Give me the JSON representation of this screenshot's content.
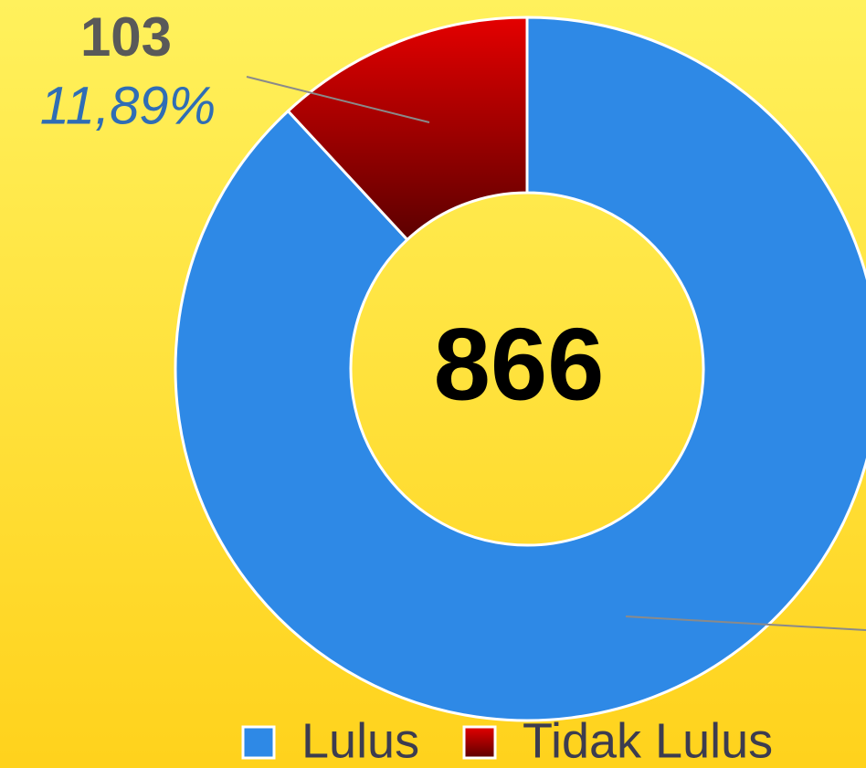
{
  "chart_data": {
    "type": "pie",
    "categories": [
      "Lulus",
      "Tidak Lulus"
    ],
    "values": [
      763,
      103
    ],
    "colors": [
      "#2e89e6",
      "#d40000"
    ],
    "percent_labels": [
      null,
      "11,89%"
    ],
    "center_label": "866",
    "legend": "bottom"
  }
}
